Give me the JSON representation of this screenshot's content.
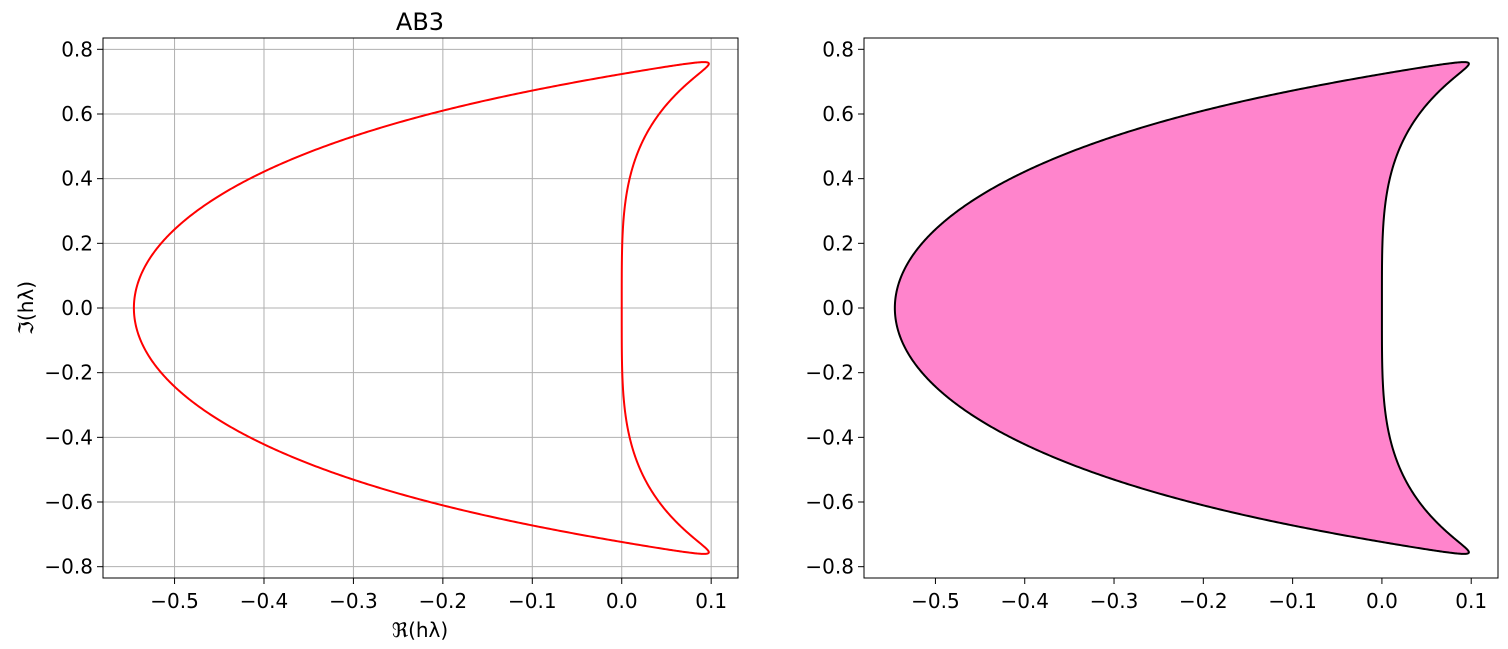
{
  "chart_data": [
    {
      "type": "line",
      "title": "AB3",
      "xlabel": "ℜ(hλ)",
      "ylabel": "ℑ(hλ)",
      "xlim": [
        -0.58,
        0.13
      ],
      "ylim": [
        -0.835,
        0.835
      ],
      "grid": true,
      "xticks": [
        -0.5,
        -0.4,
        -0.3,
        -0.2,
        -0.1,
        0.0,
        0.1
      ],
      "xtick_labels": [
        "−0.5",
        "−0.4",
        "−0.3",
        "−0.2",
        "−0.1",
        "0.0",
        "0.1"
      ],
      "yticks": [
        -0.8,
        -0.6,
        -0.4,
        -0.2,
        0.0,
        0.2,
        0.4,
        0.6,
        0.8
      ],
      "ytick_labels": [
        "−0.8",
        "−0.6",
        "−0.4",
        "−0.2",
        "0.0",
        "0.2",
        "0.4",
        "0.6",
        "0.8"
      ],
      "series": [
        {
          "curve": "AB3 stability boundary: h·λ = (z³ − z²) / ((23z² − 16z + 5)/12), z = e^{iθ}, θ ∈ [0, 2π]",
          "color": "#ff0000",
          "fill": null
        }
      ]
    },
    {
      "type": "area",
      "title": "",
      "xlabel": "",
      "ylabel": "",
      "xlim": [
        -0.58,
        0.13
      ],
      "ylim": [
        -0.835,
        0.835
      ],
      "grid": false,
      "xticks": [
        -0.5,
        -0.4,
        -0.3,
        -0.2,
        -0.1,
        0.0,
        0.1
      ],
      "xtick_labels": [
        "−0.5",
        "−0.4",
        "−0.3",
        "−0.2",
        "−0.1",
        "0.0",
        "0.1"
      ],
      "yticks": [
        -0.8,
        -0.6,
        -0.4,
        -0.2,
        0.0,
        0.2,
        0.4,
        0.6,
        0.8
      ],
      "ytick_labels": [
        "−0.8",
        "−0.6",
        "−0.4",
        "−0.2",
        "0.0",
        "0.2",
        "0.4",
        "0.6",
        "0.8"
      ],
      "series": [
        {
          "curve": "AB3 stability region (filled interior of boundary)",
          "color": "#000000",
          "fill": "#ff84cc"
        }
      ]
    }
  ]
}
